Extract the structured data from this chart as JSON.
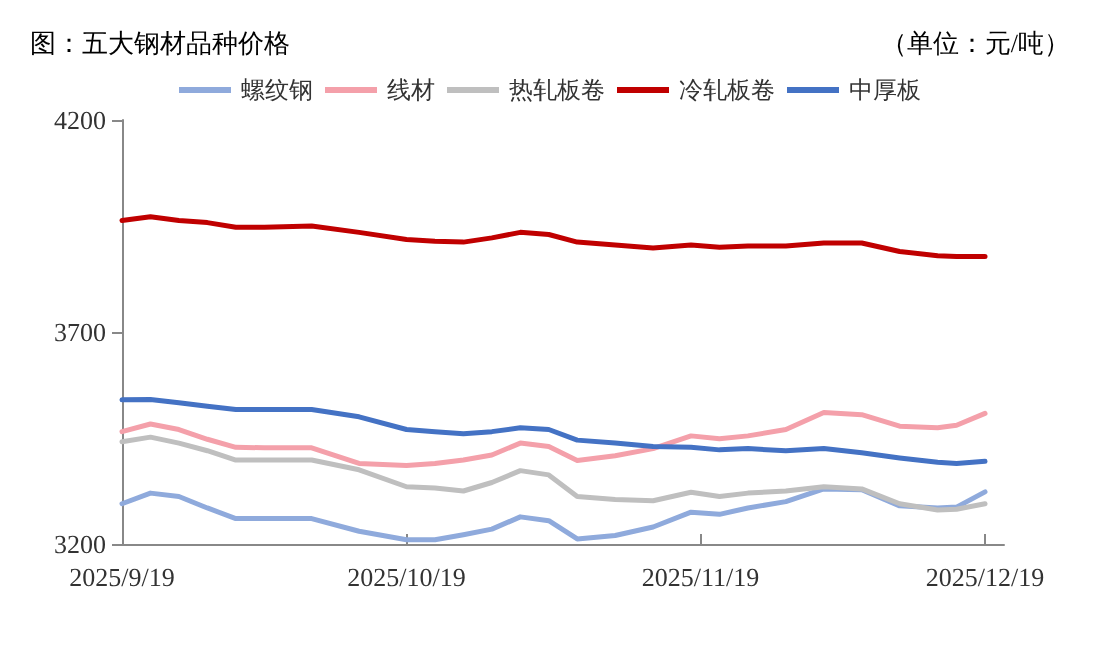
{
  "chart_data": {
    "type": "line",
    "title": "图：五大钢材品种价格",
    "subtitle": "（单位：元/吨）",
    "x": [
      "2025-09-19",
      "2025-09-22",
      "2025-09-25",
      "2025-09-28",
      "2025-10-01",
      "2025-10-04",
      "2025-10-09",
      "2025-10-14",
      "2025-10-19",
      "2025-10-22",
      "2025-10-25",
      "2025-10-28",
      "2025-10-31",
      "2025-11-03",
      "2025-11-06",
      "2025-11-10",
      "2025-11-14",
      "2025-11-18",
      "2025-11-21",
      "2025-11-24",
      "2025-11-28",
      "2025-12-02",
      "2025-12-06",
      "2025-12-10",
      "2025-12-14",
      "2025-12-16",
      "2025-12-19"
    ],
    "series": [
      {
        "name": "螺纹钢",
        "color": "#8faadc",
        "values": [
          3295,
          3320,
          3312,
          3285,
          3260,
          3260,
          3260,
          3230,
          3210,
          3210,
          3222,
          3235,
          3264,
          3255,
          3212,
          3220,
          3240,
          3275,
          3270,
          3285,
          3300,
          3330,
          3328,
          3290,
          3285,
          3287,
          3323
        ]
      },
      {
        "name": "线材",
        "color": "#f4a0aa",
        "values": [
          3465,
          3483,
          3470,
          3447,
          3428,
          3427,
          3427,
          3390,
          3385,
          3390,
          3398,
          3410,
          3438,
          3430,
          3397,
          3408,
          3425,
          3455,
          3448,
          3455,
          3470,
          3510,
          3505,
          3478,
          3474,
          3480,
          3508
        ]
      },
      {
        "name": "热轧板卷",
        "color": "#bfbfbf",
        "values": [
          3441,
          3452,
          3438,
          3420,
          3398,
          3398,
          3398,
          3375,
          3335,
          3332,
          3325,
          3345,
          3373,
          3363,
          3312,
          3305,
          3302,
          3322,
          3312,
          3320,
          3325,
          3335,
          3330,
          3295,
          3280,
          3282,
          3295
        ]
      },
      {
        "name": "冷轧板卷",
        "color": "#c00000",
        "values": [
          3963,
          3972,
          3963,
          3958,
          3947,
          3947,
          3950,
          3935,
          3918,
          3914,
          3912,
          3922,
          3935,
          3930,
          3912,
          3905,
          3898,
          3905,
          3900,
          3903,
          3903,
          3910,
          3910,
          3890,
          3880,
          3878,
          3878
        ]
      },
      {
        "name": "中厚板",
        "color": "#4472c4",
        "values": [
          3540,
          3541,
          3533,
          3525,
          3517,
          3517,
          3517,
          3500,
          3470,
          3465,
          3460,
          3465,
          3474,
          3470,
          3445,
          3438,
          3430,
          3428,
          3422,
          3425,
          3420,
          3425,
          3415,
          3403,
          3393,
          3390,
          3395
        ]
      }
    ],
    "xlim": [
      "2025-09-19",
      "2025-12-21"
    ],
    "xticks": [
      {
        "value": "2025-09-19",
        "label": "2025/9/19"
      },
      {
        "value": "2025-10-19",
        "label": "2025/10/19"
      },
      {
        "value": "2025-11-19",
        "label": "2025/11/19"
      },
      {
        "value": "2025-12-19",
        "label": "2025/12/19"
      }
    ],
    "ylim": [
      3200,
      4200
    ],
    "yticks": [
      3200,
      3700,
      4200
    ],
    "grid": false,
    "legend": "top",
    "marker": "none",
    "line_style": "solid"
  }
}
